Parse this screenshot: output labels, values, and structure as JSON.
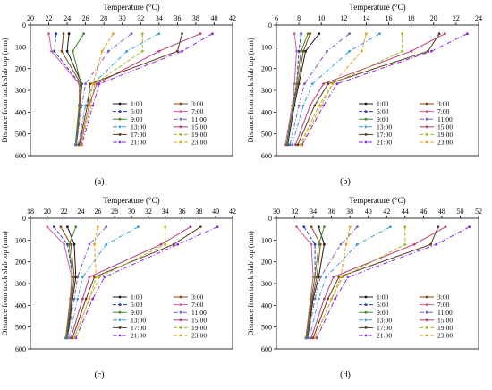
{
  "chart_data": [
    {
      "type": "line",
      "panel_label": "(a)",
      "title": "",
      "xlabel": "Temperature (°C)",
      "ylabel": "Distance from track slab top (mm)",
      "xlim": [
        20,
        42
      ],
      "ylim": [
        0,
        600
      ],
      "y_inverted": true,
      "xticks": [
        20,
        22,
        24,
        26,
        28,
        30,
        32,
        34,
        36,
        38,
        40,
        42
      ],
      "yticks": [
        0,
        100,
        200,
        300,
        400,
        500,
        600
      ],
      "legend_position": "lower-right",
      "depths": [
        40,
        120,
        270,
        370,
        550
      ],
      "series": [
        {
          "name": "1:00",
          "color": "#1a1a1a",
          "dash": "solid",
          "values": [
            24.2,
            24.0,
            25.6,
            25.4,
            25.0
          ]
        },
        {
          "name": "3:00",
          "color": "#8b4513",
          "dash": "solid",
          "values": [
            23.6,
            23.4,
            25.5,
            25.4,
            25.0
          ]
        },
        {
          "name": "5:00",
          "color": "#1f3fbf",
          "dash": "dashed",
          "values": [
            22.8,
            22.6,
            25.4,
            25.3,
            24.9
          ]
        },
        {
          "name": "7:00",
          "color": "#d85a9a",
          "dash": "solid",
          "values": [
            22.0,
            22.3,
            25.3,
            25.3,
            24.9
          ]
        },
        {
          "name": "9:00",
          "color": "#4a8a2a",
          "dash": "solid",
          "values": [
            25.8,
            24.6,
            25.5,
            25.3,
            24.9
          ]
        },
        {
          "name": "11:00",
          "color": "#7a5fb8",
          "dash": "dashdot",
          "values": [
            31.0,
            28.5,
            26.0,
            25.6,
            25.0
          ]
        },
        {
          "name": "13:00",
          "color": "#3a9ed8",
          "dash": "dashdot",
          "values": [
            34.0,
            30.5,
            26.8,
            26.0,
            25.2
          ]
        },
        {
          "name": "15:00",
          "color": "#b83a7a",
          "dash": "solid",
          "values": [
            38.5,
            34.0,
            27.2,
            26.4,
            25.4
          ]
        },
        {
          "name": "17:00",
          "color": "#5a3a1a",
          "dash": "solid",
          "values": [
            36.5,
            36.0,
            26.5,
            26.2,
            25.3
          ]
        },
        {
          "name": "19:00",
          "color": "#a8b820",
          "dash": "dashed",
          "values": [
            32.2,
            32.2,
            27.0,
            26.6,
            25.5
          ]
        },
        {
          "name": "21:00",
          "color": "#8a2be2",
          "dash": "dashdot",
          "values": [
            39.8,
            36.5,
            27.5,
            26.8,
            25.6
          ]
        },
        {
          "name": "23:00",
          "color": "#e8a020",
          "dash": "dashed",
          "values": [
            29.0,
            27.8,
            26.8,
            26.4,
            25.5
          ]
        }
      ]
    },
    {
      "type": "line",
      "panel_label": "(b)",
      "title": "",
      "xlabel": "Temperature (°C)",
      "ylabel": "Distance from track slab top (mm)",
      "xlim": [
        6,
        24
      ],
      "ylim": [
        0,
        600
      ],
      "y_inverted": true,
      "xticks": [
        6,
        8,
        10,
        12,
        14,
        16,
        18,
        20,
        22,
        24
      ],
      "yticks": [
        0,
        100,
        200,
        300,
        400,
        500,
        600
      ],
      "legend_position": "lower-right",
      "depths": [
        40,
        120,
        270,
        370,
        550
      ],
      "series": [
        {
          "name": "1:00",
          "color": "#1a1a1a",
          "dash": "solid",
          "values": [
            9.8,
            8.6,
            8.0,
            7.6,
            7.0
          ]
        },
        {
          "name": "3:00",
          "color": "#8b4513",
          "dash": "solid",
          "values": [
            9.0,
            8.4,
            7.9,
            7.5,
            6.9
          ]
        },
        {
          "name": "5:00",
          "color": "#1f3fbf",
          "dash": "dashed",
          "values": [
            8.2,
            8.0,
            7.8,
            7.4,
            6.9
          ]
        },
        {
          "name": "7:00",
          "color": "#d85a9a",
          "dash": "solid",
          "values": [
            7.6,
            7.8,
            7.6,
            7.4,
            6.8
          ]
        },
        {
          "name": "9:00",
          "color": "#4a8a2a",
          "dash": "solid",
          "values": [
            8.8,
            8.2,
            7.8,
            7.5,
            6.9
          ]
        },
        {
          "name": "11:00",
          "color": "#7a5fb8",
          "dash": "dashdot",
          "values": [
            12.5,
            10.5,
            8.5,
            8.0,
            7.2
          ]
        },
        {
          "name": "13:00",
          "color": "#3a9ed8",
          "dash": "dashdot",
          "values": [
            15.2,
            12.5,
            9.2,
            8.4,
            7.4
          ]
        },
        {
          "name": "15:00",
          "color": "#b83a7a",
          "dash": "solid",
          "values": [
            21.0,
            18.0,
            10.2,
            9.0,
            7.7
          ]
        },
        {
          "name": "17:00",
          "color": "#5a3a1a",
          "dash": "solid",
          "values": [
            20.5,
            19.5,
            10.6,
            9.4,
            7.9
          ]
        },
        {
          "name": "19:00",
          "color": "#a8b820",
          "dash": "dashed",
          "values": [
            17.2,
            17.2,
            11.0,
            9.8,
            8.1
          ]
        },
        {
          "name": "21:00",
          "color": "#8a2be2",
          "dash": "dashdot",
          "values": [
            23.0,
            19.8,
            11.4,
            10.2,
            8.3
          ]
        },
        {
          "name": "23:00",
          "color": "#e8a020",
          "dash": "dashed",
          "values": [
            14.0,
            13.6,
            11.0,
            10.0,
            8.2
          ]
        }
      ]
    },
    {
      "type": "line",
      "panel_label": "(c)",
      "title": "",
      "xlabel": "Temperature (°C)",
      "ylabel": "Distance from track slab top (mm)",
      "xlim": [
        18,
        42
      ],
      "ylim": [
        0,
        600
      ],
      "y_inverted": true,
      "xticks": [
        18,
        20,
        22,
        24,
        26,
        28,
        30,
        32,
        34,
        36,
        38,
        40,
        42
      ],
      "yticks": [
        0,
        100,
        200,
        300,
        400,
        500,
        600
      ],
      "legend_position": "lower-right",
      "depths": [
        40,
        120,
        270,
        370,
        550
      ],
      "series": [
        {
          "name": "1:00",
          "color": "#1a1a1a",
          "dash": "solid",
          "values": [
            22.4,
            23.2,
            23.4,
            23.0,
            22.4
          ]
        },
        {
          "name": "3:00",
          "color": "#8b4513",
          "dash": "solid",
          "values": [
            21.6,
            22.8,
            23.2,
            22.9,
            22.3
          ]
        },
        {
          "name": "5:00",
          "color": "#1f3fbf",
          "dash": "dashed",
          "values": [
            20.8,
            22.4,
            23.0,
            22.8,
            22.2
          ]
        },
        {
          "name": "7:00",
          "color": "#d85a9a",
          "dash": "solid",
          "values": [
            20.0,
            22.0,
            22.9,
            22.7,
            22.2
          ]
        },
        {
          "name": "9:00",
          "color": "#4a8a2a",
          "dash": "solid",
          "values": [
            23.4,
            22.6,
            23.0,
            22.8,
            22.2
          ]
        },
        {
          "name": "11:00",
          "color": "#7a5fb8",
          "dash": "dashdot",
          "values": [
            27.0,
            25.0,
            23.6,
            23.2,
            22.4
          ]
        },
        {
          "name": "13:00",
          "color": "#3a9ed8",
          "dash": "dashdot",
          "values": [
            30.8,
            27.0,
            24.2,
            23.6,
            22.6
          ]
        },
        {
          "name": "15:00",
          "color": "#b83a7a",
          "dash": "solid",
          "values": [
            37.0,
            33.5,
            25.0,
            24.2,
            22.8
          ]
        },
        {
          "name": "17:00",
          "color": "#5a3a1a",
          "dash": "solid",
          "values": [
            38.2,
            35.0,
            25.6,
            24.6,
            23.0
          ]
        },
        {
          "name": "19:00",
          "color": "#a8b820",
          "dash": "dashed",
          "values": [
            34.0,
            34.0,
            26.2,
            25.0,
            23.2
          ]
        },
        {
          "name": "21:00",
          "color": "#8a2be2",
          "dash": "dashdot",
          "values": [
            40.2,
            35.5,
            26.8,
            25.4,
            23.4
          ]
        },
        {
          "name": "23:00",
          "color": "#e8a020",
          "dash": "dashed",
          "values": [
            26.0,
            25.6,
            25.8,
            25.0,
            23.2
          ]
        }
      ]
    },
    {
      "type": "line",
      "panel_label": "(d)",
      "title": "",
      "xlabel": "Temperature (°C)",
      "ylabel": "Distance from track slab top (mm)",
      "xlim": [
        30,
        52
      ],
      "ylim": [
        0,
        600
      ],
      "y_inverted": true,
      "xticks": [
        30,
        32,
        34,
        36,
        38,
        40,
        42,
        44,
        46,
        48,
        50,
        52
      ],
      "yticks": [
        0,
        100,
        200,
        300,
        400,
        500,
        600
      ],
      "legend_position": "lower-right",
      "depths": [
        40,
        120,
        270,
        370,
        550
      ],
      "series": [
        {
          "name": "1:00",
          "color": "#1a1a1a",
          "dash": "solid",
          "values": [
            34.6,
            35.2,
            34.6,
            34.0,
            33.4
          ]
        },
        {
          "name": "3:00",
          "color": "#8b4513",
          "dash": "solid",
          "values": [
            33.8,
            34.8,
            34.4,
            33.9,
            33.3
          ]
        },
        {
          "name": "5:00",
          "color": "#1f3fbf",
          "dash": "dashed",
          "values": [
            33.0,
            34.2,
            34.2,
            33.8,
            33.2
          ]
        },
        {
          "name": "7:00",
          "color": "#d85a9a",
          "dash": "solid",
          "values": [
            32.2,
            33.8,
            34.0,
            33.7,
            33.2
          ]
        },
        {
          "name": "9:00",
          "color": "#4a8a2a",
          "dash": "solid",
          "values": [
            35.2,
            34.6,
            34.2,
            33.8,
            33.2
          ]
        },
        {
          "name": "11:00",
          "color": "#7a5fb8",
          "dash": "dashdot",
          "values": [
            38.8,
            37.0,
            34.8,
            34.2,
            33.4
          ]
        },
        {
          "name": "13:00",
          "color": "#3a9ed8",
          "dash": "dashdot",
          "values": [
            42.4,
            38.8,
            35.4,
            34.6,
            33.6
          ]
        },
        {
          "name": "15:00",
          "color": "#b83a7a",
          "dash": "solid",
          "values": [
            48.4,
            45.0,
            36.2,
            35.2,
            33.8
          ]
        },
        {
          "name": "17:00",
          "color": "#5a3a1a",
          "dash": "solid",
          "values": [
            47.6,
            46.8,
            36.8,
            35.6,
            34.0
          ]
        },
        {
          "name": "19:00",
          "color": "#a8b820",
          "dash": "dashed",
          "values": [
            44.0,
            44.0,
            37.2,
            36.0,
            34.2
          ]
        },
        {
          "name": "21:00",
          "color": "#8a2be2",
          "dash": "dashdot",
          "values": [
            51.0,
            47.4,
            37.8,
            36.4,
            34.4
          ]
        },
        {
          "name": "23:00",
          "color": "#e8a020",
          "dash": "dashed",
          "values": [
            38.0,
            37.6,
            37.0,
            36.0,
            34.2
          ]
        }
      ]
    }
  ]
}
